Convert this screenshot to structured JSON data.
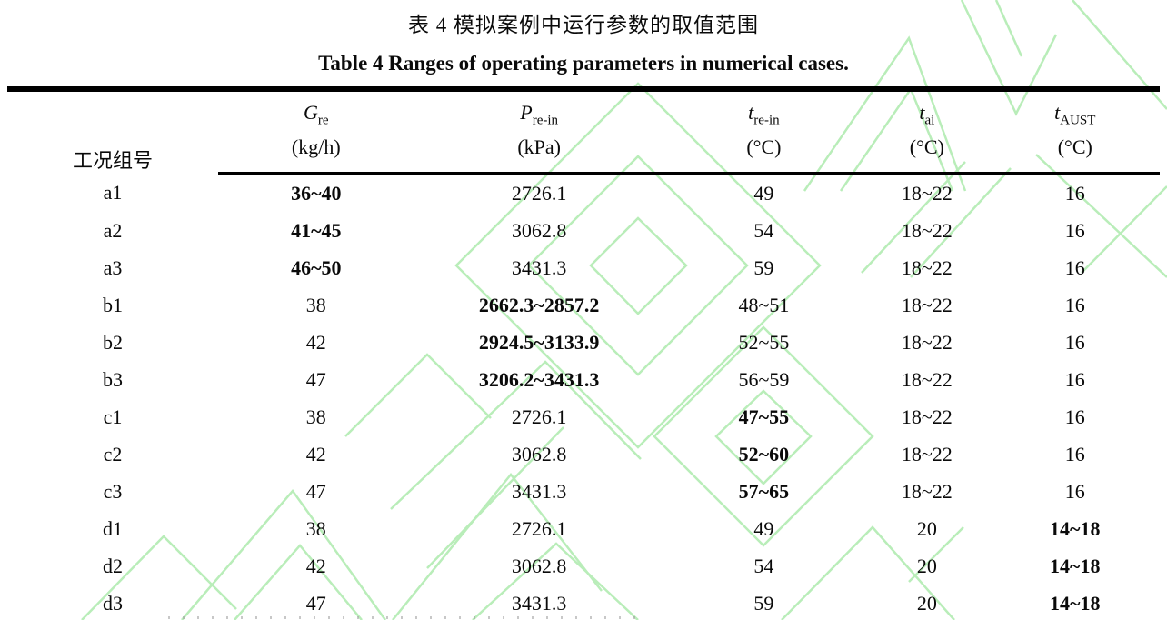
{
  "title_zh": "表 4 模拟案例中运行参数的取值范围",
  "title_en": "Table 4 Ranges of operating parameters in numerical cases.",
  "watermark_color": "#b9edb9",
  "table": {
    "columns": [
      {
        "label": "工况组号",
        "symbol_base": "",
        "symbol_sub": "",
        "unit": ""
      },
      {
        "symbol_base": "G",
        "symbol_sub": "re",
        "unit": "(kg/h)"
      },
      {
        "symbol_base": "P",
        "symbol_sub": "re-in",
        "unit": "(kPa)"
      },
      {
        "symbol_base": "t",
        "symbol_sub": "re-in",
        "unit": "(°C)"
      },
      {
        "symbol_base": "t",
        "symbol_sub": "ai",
        "unit": "(°C)"
      },
      {
        "symbol_base": "t",
        "symbol_sub": "AUST",
        "unit": "(°C)"
      }
    ],
    "rows": [
      {
        "id": "a1",
        "values": [
          "36~40",
          "2726.1",
          "49",
          "18~22",
          "16"
        ],
        "bold_col": 0
      },
      {
        "id": "a2",
        "values": [
          "41~45",
          "3062.8",
          "54",
          "18~22",
          "16"
        ],
        "bold_col": 0
      },
      {
        "id": "a3",
        "values": [
          "46~50",
          "3431.3",
          "59",
          "18~22",
          "16"
        ],
        "bold_col": 0
      },
      {
        "id": "b1",
        "values": [
          "38",
          "2662.3~2857.2",
          "48~51",
          "18~22",
          "16"
        ],
        "bold_col": 1
      },
      {
        "id": "b2",
        "values": [
          "42",
          "2924.5~3133.9",
          "52~55",
          "18~22",
          "16"
        ],
        "bold_col": 1
      },
      {
        "id": "b3",
        "values": [
          "47",
          "3206.2~3431.3",
          "56~59",
          "18~22",
          "16"
        ],
        "bold_col": 1
      },
      {
        "id": "c1",
        "values": [
          "38",
          "2726.1",
          "47~55",
          "18~22",
          "16"
        ],
        "bold_col": 2
      },
      {
        "id": "c2",
        "values": [
          "42",
          "3062.8",
          "52~60",
          "18~22",
          "16"
        ],
        "bold_col": 2
      },
      {
        "id": "c3",
        "values": [
          "47",
          "3431.3",
          "57~65",
          "18~22",
          "16"
        ],
        "bold_col": 2
      },
      {
        "id": "d1",
        "values": [
          "38",
          "2726.1",
          "49",
          "20",
          "14~18"
        ],
        "bold_col": 4
      },
      {
        "id": "d2",
        "values": [
          "42",
          "3062.8",
          "54",
          "20",
          "14~18"
        ],
        "bold_col": 4
      },
      {
        "id": "d3",
        "values": [
          "47",
          "3431.3",
          "59",
          "20",
          "14~18"
        ],
        "bold_col": 4
      }
    ]
  }
}
